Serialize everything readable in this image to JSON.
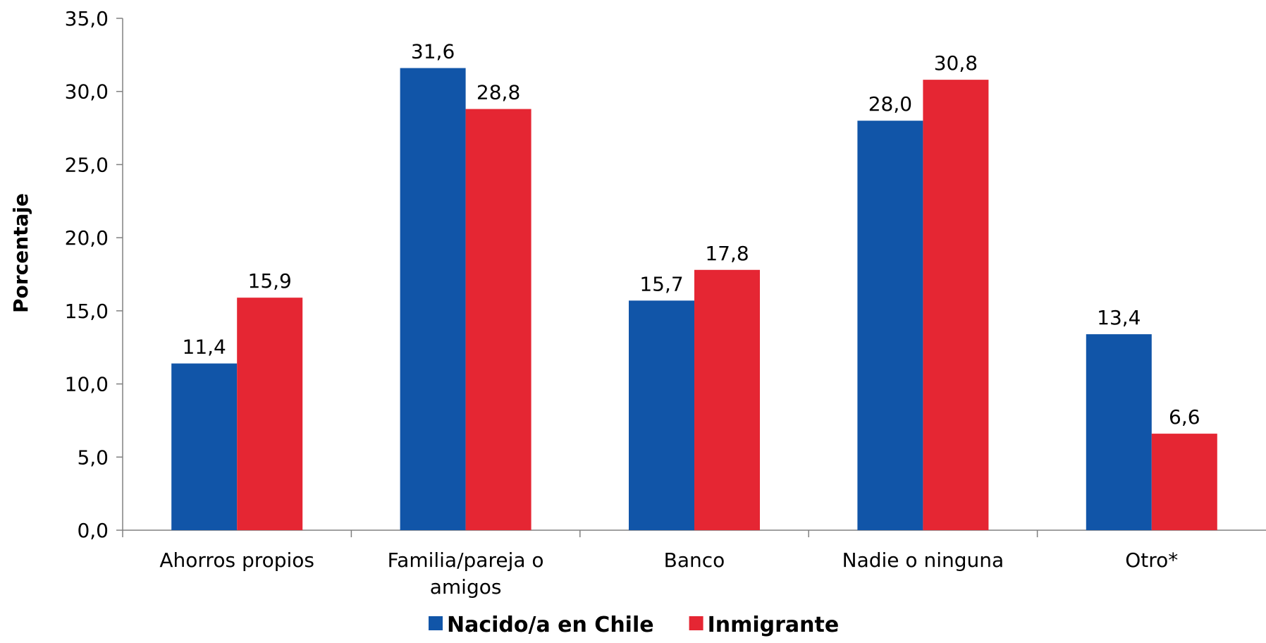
{
  "chart_data": {
    "type": "bar",
    "categories": [
      [
        "Ahorros propios"
      ],
      [
        "Familia/pareja o",
        "amigos"
      ],
      [
        "Banco"
      ],
      [
        "Nadie o ninguna"
      ],
      [
        "Otro*"
      ]
    ],
    "series": [
      {
        "name": "Nacido/a en Chile",
        "color": "#1155A8",
        "values": [
          11.4,
          31.6,
          15.7,
          28.0,
          13.4
        ],
        "labels": [
          "11,4",
          "31,6",
          "15,7",
          "28,0",
          "13,4"
        ]
      },
      {
        "name": "Inmigrante",
        "color": "#E52633",
        "values": [
          15.9,
          28.8,
          17.8,
          30.8,
          6.6
        ],
        "labels": [
          "15,9",
          "28,8",
          "17,8",
          "30,8",
          "6,6"
        ]
      }
    ],
    "ylabel": "Porcentaje",
    "xlabel": "",
    "ylim": [
      0,
      35
    ],
    "yticks": [
      0,
      5,
      10,
      15,
      20,
      25,
      30,
      35
    ],
    "ytick_labels": [
      "0,0",
      "5,0",
      "10,0",
      "15,0",
      "20,0",
      "25,0",
      "30,0",
      "35,0"
    ],
    "grid": false,
    "legend_position": "bottom",
    "axis_color": "#808080"
  }
}
